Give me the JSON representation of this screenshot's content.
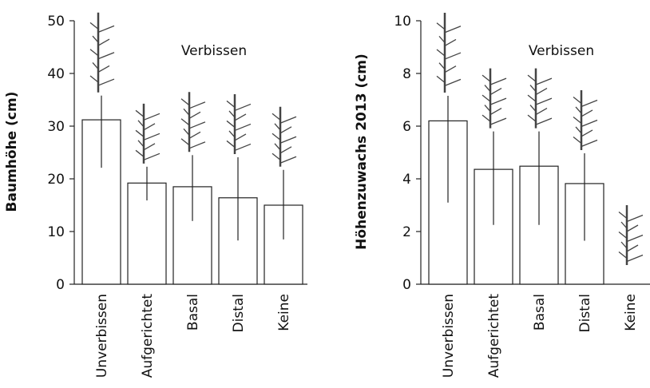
{
  "chart_data": [
    {
      "type": "bar",
      "ylabel": "Baumhöhe (cm)",
      "annotation": "Verbissen",
      "categories": [
        "Unverbissen",
        "Aufgerichtet",
        "Basal",
        "Distal",
        "Keine"
      ],
      "values": [
        31.2,
        19.2,
        18.5,
        16.4,
        15.0
      ],
      "lower": [
        22.1,
        15.9,
        12.0,
        8.3,
        8.5
      ],
      "upper": [
        35.8,
        22.3,
        24.5,
        24.1,
        21.7
      ],
      "ylim": [
        0,
        50
      ],
      "yticks": [
        0,
        10,
        20,
        30,
        40,
        50
      ],
      "color": "#ffffff"
    },
    {
      "type": "bar",
      "ylabel": "Höhenzuwachs 2013 (cm)",
      "annotation": "Verbissen",
      "categories": [
        "Unverbissen",
        "Aufgerichtet",
        "Basal",
        "Distal",
        "Keine"
      ],
      "values": [
        6.2,
        4.36,
        4.48,
        3.82,
        0
      ],
      "lower": [
        3.1,
        2.25,
        2.25,
        1.65,
        null
      ],
      "upper": [
        7.15,
        5.8,
        5.8,
        4.97,
        null
      ],
      "ylim": [
        0,
        10
      ],
      "yticks": [
        0,
        2,
        4,
        6,
        8,
        10
      ],
      "color": "#ffffff"
    }
  ]
}
